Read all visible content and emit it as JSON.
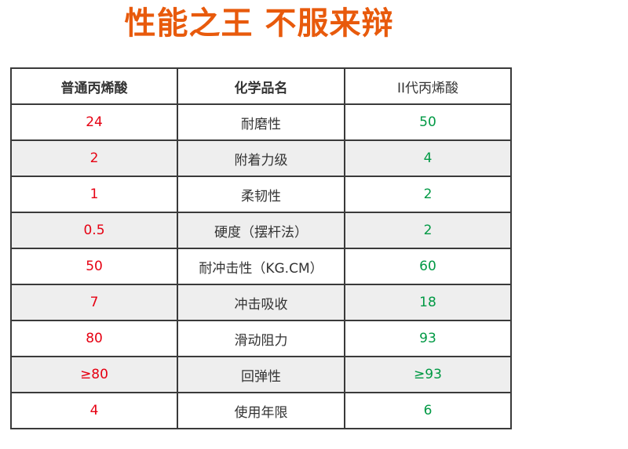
{
  "title": "性能之王 不服来辩",
  "colors": {
    "title": "#e85a0c",
    "ordinary": "#e60012",
    "gen2": "#009944",
    "alt_row": "#eeeeee"
  },
  "table": {
    "headers": [
      "普通丙烯酸",
      "化学品名",
      "II代丙烯酸"
    ],
    "rows": [
      {
        "ordinary": "24",
        "property": "耐磨性",
        "gen2": "50"
      },
      {
        "ordinary": "2",
        "property": "附着力级",
        "gen2": "4"
      },
      {
        "ordinary": "1",
        "property": "柔韧性",
        "gen2": "2"
      },
      {
        "ordinary": "0.5",
        "property": "硬度（摆杆法）",
        "gen2": "2"
      },
      {
        "ordinary": "50",
        "property": "耐冲击性（KG.CM）",
        "gen2": "60"
      },
      {
        "ordinary": "7",
        "property": "冲击吸收",
        "gen2": "18"
      },
      {
        "ordinary": "80",
        "property": "滑动阻力",
        "gen2": "93"
      },
      {
        "ordinary": "≥80",
        "property": "回弹性",
        "gen2": "≥93"
      },
      {
        "ordinary": "4",
        "property": "使用年限",
        "gen2": "6"
      }
    ]
  }
}
